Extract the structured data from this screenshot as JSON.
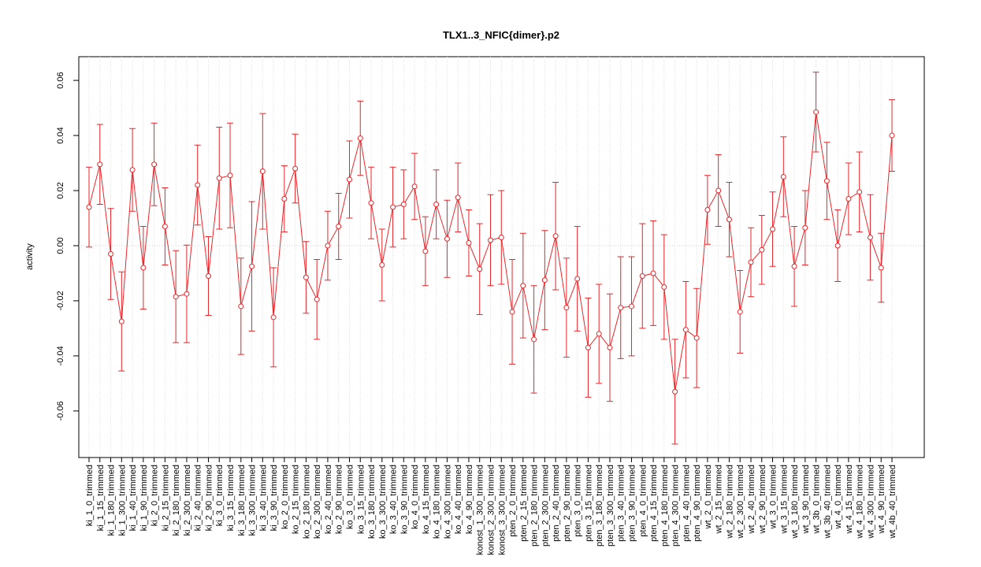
{
  "chart_data": {
    "type": "line",
    "title": "TLX1..3_NFIC{dimer}.p2",
    "y_label": "activity",
    "categories": [
      "ki_1_0_trimmed",
      "ki_1_15_trimmed",
      "ki_1_180_trimmed",
      "ki_1_300_trimmed",
      "ki_1_40_trimmed",
      "ki_1_90_trimmed",
      "ki_2_0_trimmed",
      "ki_2_15_trimmed",
      "ki_2_180_trimmed",
      "ki_2_300_trimmed",
      "ki_2_40_trimmed",
      "ki_2_90_trimmed",
      "ki_3_0_trimmed",
      "ki_3_15_trimmed",
      "ki_3_180_trimmed",
      "ki_3_300_trimmed",
      "ki_3_40_trimmed",
      "ki_3_90_trimmed",
      "ko_2_0_trimmed",
      "ko_2_15_trimmed",
      "ko_2_180_trimmed",
      "ko_2_300_trimmed",
      "ko_2_40_trimmed",
      "ko_2_90_trimmed",
      "ko_3_0_trimmed",
      "ko_3_15_trimmed",
      "ko_3_180_trimmed",
      "ko_3_300_trimmed",
      "ko_3_40_trimmed",
      "ko_3_90_trimmed",
      "ko_4_0_trimmed",
      "ko_4_15_trimmed",
      "ko_4_180_trimmed",
      "ko_4_300_trimmed",
      "ko_4_40_trimmed",
      "ko_4_90_trimmed",
      "konost_1_300_trimmed",
      "konost_2_300_trimmed",
      "konost_3_300_trimmed",
      "pten_2_0_trimmed",
      "pten_2_15_trimmed",
      "pten_2_180_trimmed",
      "pten_2_300_trimmed",
      "pten_2_40_trimmed",
      "pten_2_90_trimmed",
      "pten_3_0_trimmed",
      "pten_3_15_trimmed",
      "pten_3_180_trimmed",
      "pten_3_300_trimmed",
      "pten_3_40_trimmed",
      "pten_3_90_trimmed",
      "pten_4_0_trimmed",
      "pten_4_15_trimmed",
      "pten_4_180_trimmed",
      "pten_4_300_trimmed",
      "pten_4_40_trimmed",
      "pten_4_90_trimmed",
      "wt_2_0_trimmed",
      "wt_2_15_trimmed",
      "wt_2_180_trimmed",
      "wt_2_300_trimmed",
      "wt_2_40_trimmed",
      "wt_2_90_trimmed",
      "wt_3_0_trimmed",
      "wt_3_15_trimmed",
      "wt_3_180_trimmed",
      "wt_3_90_trimmed",
      "wt_3b_0_trimmed",
      "wt_3b_40_trimmed",
      "wt_4_0_trimmed",
      "wt_4_15_trimmed",
      "wt_4_180_trimmed",
      "wt_4_300_trimmed",
      "wt_4_90_trimmed",
      "wt_4b_40_trimmed"
    ],
    "series": [
      {
        "color": "#e8262a",
        "values": [
          0.014,
          0.0295,
          -0.003,
          -0.0275,
          0.0275,
          -0.008,
          0.0295,
          0.007,
          -0.0185,
          -0.0175,
          0.022,
          -0.011,
          0.0245,
          0.0255,
          -0.022,
          -0.0075,
          0.027,
          -0.026,
          0.017,
          0.028,
          -0.0115,
          -0.0195,
          0,
          0.007,
          0.024,
          0.039,
          0.0155,
          -0.007,
          0.014,
          0.015,
          0.0215,
          -0.002,
          0.015,
          0.0025,
          0.0175,
          0.001,
          -0.0085,
          0.002,
          0.003,
          -0.024,
          -0.0145,
          -0.034,
          -0.0125,
          0.0035,
          -0.0225,
          -0.012,
          -0.037,
          -0.032,
          -0.037,
          -0.0225,
          -0.022,
          -0.011,
          -0.01,
          -0.015,
          -0.053,
          -0.0305,
          -0.0335,
          0.013,
          0.02,
          0.0095,
          -0.024,
          -0.006,
          -0.0015,
          0.006,
          0.025,
          -0.0075,
          0.0065,
          0.0485,
          0.0235,
          0,
          0.017,
          0.0195,
          0.003,
          -0.008,
          0.04
        ],
        "errors": [
          0.0145,
          0.0145,
          0.0165,
          0.018,
          0.015,
          0.015,
          0.015,
          0.014,
          0.0167,
          0.0177,
          0.0145,
          0.0143,
          0.0185,
          0.019,
          0.0175,
          0.0235,
          0.021,
          0.018,
          0.012,
          0.0125,
          0.013,
          0.0145,
          0.0125,
          0.012,
          0.014,
          0.0135,
          0.013,
          0.013,
          0.0145,
          0.0125,
          0.012,
          0.0125,
          0.0125,
          0.014,
          0.0125,
          0.012,
          0.0165,
          0.0165,
          0.017,
          0.019,
          0.019,
          0.0195,
          0.018,
          0.0195,
          0.018,
          0.019,
          0.018,
          0.018,
          0.0195,
          0.0185,
          0.018,
          0.019,
          0.019,
          0.019,
          0.019,
          0.0175,
          0.018,
          0.0125,
          0.013,
          0.0135,
          0.015,
          0.0125,
          0.0125,
          0.0135,
          0.0145,
          0.0145,
          0.0135,
          0.0145,
          0.014,
          0.013,
          0.013,
          0.0145,
          0.0155,
          0.0125,
          0.013
        ]
      }
    ],
    "ylim": [
      -0.0769,
      0.0686
    ],
    "yticks": [
      -0.06,
      -0.04,
      -0.02,
      {
        "value": 0,
        "label": "0.00"
      },
      0.02,
      0.04,
      0.06
    ],
    "grid": true
  }
}
